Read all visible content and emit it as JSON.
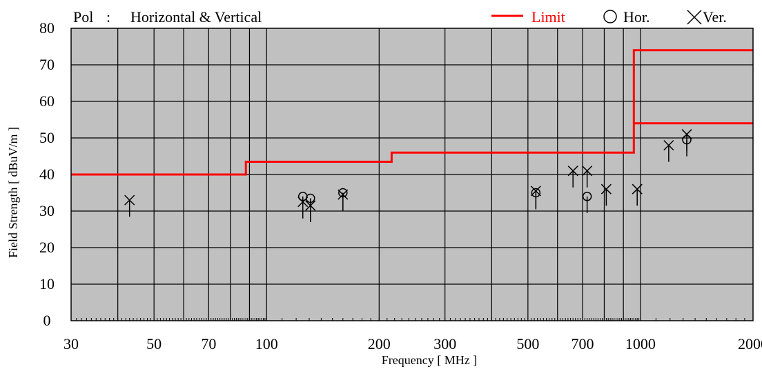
{
  "header": {
    "pol_label": "Pol",
    "pol_sep": ":",
    "pol_value": "Horizontal & Vertical"
  },
  "legend": {
    "limit_label": "Limit",
    "hor_label": "Hor.",
    "ver_label": "Ver."
  },
  "colors": {
    "plot_background": "#c0c0c0",
    "grid": "#000000",
    "limit": "#ff0000"
  },
  "chart_data": {
    "type": "scatter",
    "xlabel": "Frequency [ MHz ]",
    "ylabel": "Field Strength [ dBuV/m ]",
    "x_scale": "log",
    "xlim": [
      30,
      2000
    ],
    "ylim": [
      0,
      80
    ],
    "x_ticks": [
      30,
      50,
      70,
      100,
      200,
      300,
      500,
      700,
      1000,
      2000
    ],
    "y_ticks": [
      0,
      10,
      20,
      30,
      40,
      50,
      60,
      70,
      80
    ],
    "x_gridlines": [
      30,
      40,
      50,
      60,
      70,
      80,
      90,
      100,
      200,
      300,
      400,
      500,
      600,
      700,
      800,
      900,
      1000,
      2000
    ],
    "grid": true,
    "legend_position": "top-right",
    "limit_lines": [
      {
        "name": "Limit",
        "points": [
          [
            30,
            40
          ],
          [
            88,
            40
          ],
          [
            88,
            43.5
          ],
          [
            216,
            43.5
          ],
          [
            216,
            46
          ],
          [
            960,
            46
          ],
          [
            960,
            74
          ],
          [
            2000,
            74
          ]
        ]
      },
      {
        "name": "Limit",
        "points": [
          [
            960,
            54
          ],
          [
            2000,
            54
          ]
        ]
      }
    ],
    "series": [
      {
        "name": "Hor.",
        "marker": "circle",
        "points": [
          [
            125,
            34
          ],
          [
            131,
            33.5
          ],
          [
            160,
            35
          ],
          [
            525,
            35
          ],
          [
            720,
            34
          ],
          [
            1330,
            49.5
          ]
        ]
      },
      {
        "name": "Ver.",
        "marker": "x",
        "points": [
          [
            43,
            33
          ],
          [
            125,
            32.5
          ],
          [
            131,
            31.5
          ],
          [
            160,
            34.5
          ],
          [
            525,
            35.5
          ],
          [
            660,
            41
          ],
          [
            720,
            41
          ],
          [
            810,
            36
          ],
          [
            980,
            36
          ],
          [
            1190,
            48
          ],
          [
            1330,
            51
          ]
        ]
      }
    ]
  }
}
